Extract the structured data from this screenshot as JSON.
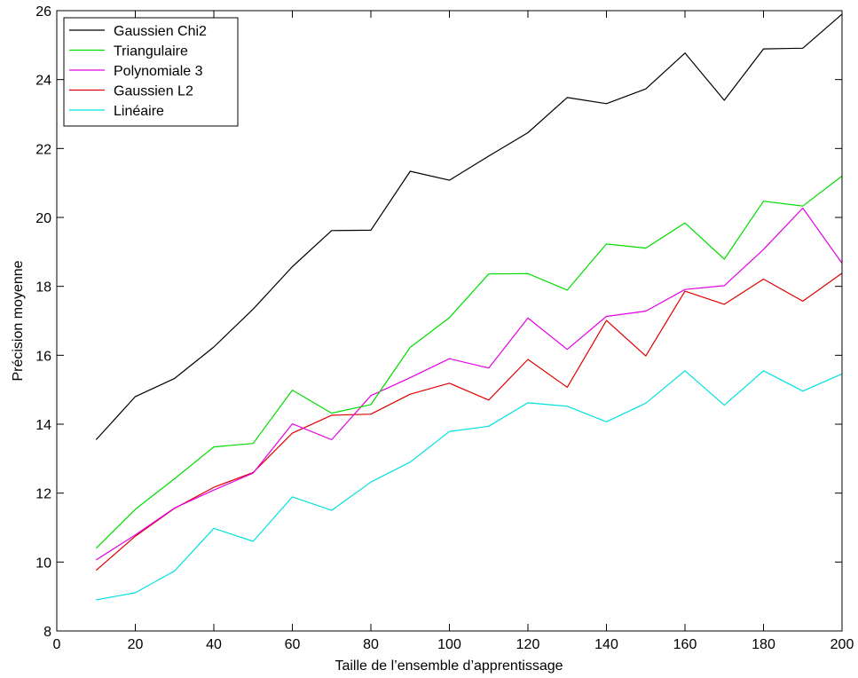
{
  "chart_data": {
    "type": "line",
    "title": "",
    "xlabel": "Taille de l’ensemble d’apprentissage",
    "ylabel": "Précision moyenne",
    "xlim": [
      0,
      200
    ],
    "ylim": [
      8,
      26
    ],
    "xticks": [
      0,
      20,
      40,
      60,
      80,
      100,
      120,
      140,
      160,
      180,
      200
    ],
    "yticks": [
      8,
      10,
      12,
      14,
      16,
      18,
      20,
      22,
      24,
      26
    ],
    "grid": false,
    "legend_position": "top-left",
    "x": [
      10,
      20,
      30,
      40,
      50,
      60,
      70,
      80,
      90,
      100,
      110,
      120,
      130,
      140,
      150,
      160,
      170,
      180,
      190,
      200
    ],
    "series": [
      {
        "name": "Gaussien Chi2",
        "color": "#000000",
        "values": [
          13.55,
          14.8,
          15.33,
          16.24,
          17.34,
          18.57,
          19.62,
          19.63,
          21.34,
          21.08,
          21.78,
          22.46,
          23.48,
          23.3,
          23.73,
          24.77,
          23.4,
          24.89,
          24.91,
          25.9
        ]
      },
      {
        "name": "Triangulaire",
        "color": "#00dd00",
        "values": [
          10.4,
          11.53,
          12.42,
          13.34,
          13.44,
          14.99,
          14.32,
          14.57,
          16.23,
          17.09,
          18.36,
          18.37,
          17.89,
          19.23,
          19.11,
          19.84,
          18.79,
          20.47,
          20.33,
          21.2
        ]
      },
      {
        "name": "Polynomiale 3",
        "color": "#e400e4",
        "values": [
          10.06,
          10.79,
          11.57,
          12.09,
          12.58,
          14.01,
          13.55,
          14.83,
          15.35,
          15.9,
          15.63,
          17.08,
          16.17,
          17.13,
          17.28,
          17.91,
          18.02,
          19.07,
          20.27,
          18.67
        ]
      },
      {
        "name": "Gaussien L2",
        "color": "#e00000",
        "values": [
          9.76,
          10.75,
          11.56,
          12.17,
          12.6,
          13.74,
          14.26,
          14.29,
          14.87,
          15.19,
          14.7,
          15.88,
          15.07,
          17.01,
          15.98,
          17.86,
          17.48,
          18.21,
          17.57,
          18.38
        ]
      },
      {
        "name": "Linéaire",
        "color": "#00e0e0",
        "values": [
          8.9,
          9.11,
          9.74,
          10.98,
          10.6,
          11.89,
          11.5,
          12.32,
          12.9,
          13.79,
          13.94,
          14.62,
          14.52,
          14.07,
          14.61,
          15.55,
          14.55,
          15.55,
          14.96,
          15.46
        ]
      }
    ]
  }
}
